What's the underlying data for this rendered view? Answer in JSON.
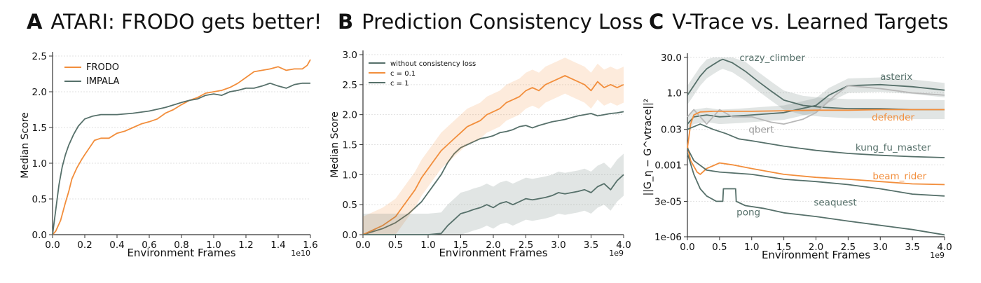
{
  "panels": [
    {
      "letter": "A",
      "title": "ATARI: FRODO gets better!"
    },
    {
      "letter": "B",
      "title": "Prediction Consistency Loss"
    },
    {
      "letter": "C",
      "title": "V-Trace vs. Learned Targets"
    }
  ],
  "chart_data": [
    {
      "type": "line",
      "title": "ATARI: FRODO gets better!",
      "xlabel": "Environment Frames",
      "ylabel": "Median Score",
      "x_scale_label": "1e10",
      "xlim": [
        0,
        1.6
      ],
      "ylim": [
        0,
        2.5
      ],
      "xticks": [
        0.0,
        0.2,
        0.4,
        0.6,
        0.8,
        1.0,
        1.2,
        1.4,
        1.6
      ],
      "xtick_labels": [
        "0.0",
        "0.2",
        "0.4",
        "0.6",
        "0.8",
        "1.0",
        "1.2",
        "1.4",
        "1.6"
      ],
      "yticks": [
        0.0,
        0.5,
        1.0,
        1.5,
        2.0,
        2.5
      ],
      "ytick_labels": [
        "0.0",
        "0.5",
        "1.0",
        "1.5",
        "2.0",
        "2.5"
      ],
      "grid": "horizontal",
      "legend": "top-left",
      "series": [
        {
          "name": "FRODO",
          "color": "#f28e3c",
          "x": [
            0.0,
            0.02,
            0.05,
            0.08,
            0.1,
            0.12,
            0.15,
            0.18,
            0.2,
            0.23,
            0.26,
            0.3,
            0.35,
            0.4,
            0.45,
            0.5,
            0.55,
            0.6,
            0.65,
            0.7,
            0.75,
            0.8,
            0.85,
            0.9,
            0.95,
            1.0,
            1.05,
            1.1,
            1.15,
            1.2,
            1.25,
            1.3,
            1.35,
            1.4,
            1.45,
            1.5,
            1.55,
            1.58,
            1.6
          ],
          "y": [
            0.0,
            0.05,
            0.2,
            0.45,
            0.6,
            0.78,
            0.93,
            1.05,
            1.12,
            1.22,
            1.32,
            1.35,
            1.35,
            1.42,
            1.45,
            1.5,
            1.55,
            1.58,
            1.62,
            1.7,
            1.75,
            1.82,
            1.88,
            1.92,
            1.98,
            2.0,
            2.02,
            2.06,
            2.12,
            2.2,
            2.28,
            2.3,
            2.32,
            2.35,
            2.3,
            2.32,
            2.32,
            2.37,
            2.45
          ]
        },
        {
          "name": "IMPALA",
          "color": "#56706a",
          "x": [
            0.0,
            0.02,
            0.04,
            0.06,
            0.08,
            0.1,
            0.13,
            0.16,
            0.2,
            0.25,
            0.3,
            0.4,
            0.5,
            0.6,
            0.7,
            0.8,
            0.85,
            0.9,
            0.95,
            1.0,
            1.05,
            1.1,
            1.15,
            1.2,
            1.25,
            1.3,
            1.35,
            1.4,
            1.45,
            1.5,
            1.55,
            1.6
          ],
          "y": [
            0.0,
            0.35,
            0.7,
            0.95,
            1.12,
            1.25,
            1.4,
            1.52,
            1.62,
            1.66,
            1.68,
            1.68,
            1.7,
            1.73,
            1.78,
            1.85,
            1.88,
            1.9,
            1.95,
            1.97,
            1.95,
            2.0,
            2.02,
            2.05,
            2.05,
            2.08,
            2.12,
            2.08,
            2.05,
            2.1,
            2.12,
            2.12
          ]
        }
      ]
    },
    {
      "type": "line",
      "title": "Prediction Consistency Loss",
      "xlabel": "Environment Frames",
      "ylabel": "Median Score",
      "x_scale_label": "1e9",
      "xlim": [
        0,
        4.0
      ],
      "ylim": [
        0,
        3.0
      ],
      "xticks": [
        0.0,
        0.5,
        1.0,
        1.5,
        2.0,
        2.5,
        3.0,
        3.5,
        4.0
      ],
      "xtick_labels": [
        "0.0",
        "0.5",
        "1.0",
        "1.5",
        "2.0",
        "2.5",
        "3.0",
        "3.5",
        "4.0"
      ],
      "yticks": [
        0.0,
        0.5,
        1.0,
        1.5,
        2.0,
        2.5,
        3.0
      ],
      "ytick_labels": [
        "0.0",
        "0.5",
        "1.0",
        "1.5",
        "2.0",
        "2.5",
        "3.0"
      ],
      "grid": "horizontal",
      "legend": "top-left",
      "series": [
        {
          "name": "without consistency loss",
          "color": "#56706a",
          "x": [
            0.0,
            0.3,
            0.5,
            0.7,
            0.9,
            1.0,
            1.1,
            1.2,
            1.3,
            1.4,
            1.5,
            1.6,
            1.7,
            1.8,
            1.9,
            2.0,
            2.1,
            2.2,
            2.3,
            2.4,
            2.5,
            2.6,
            2.7,
            2.8,
            2.9,
            3.0,
            3.1,
            3.2,
            3.3,
            3.4,
            3.5,
            3.6,
            3.7,
            3.8,
            3.9,
            4.0
          ],
          "y": [
            0.0,
            0.1,
            0.2,
            0.35,
            0.55,
            0.7,
            0.85,
            1.0,
            1.2,
            1.35,
            1.45,
            1.5,
            1.55,
            1.6,
            1.62,
            1.65,
            1.7,
            1.72,
            1.75,
            1.8,
            1.82,
            1.78,
            1.82,
            1.85,
            1.88,
            1.9,
            1.92,
            1.95,
            1.98,
            2.0,
            2.02,
            1.98,
            2.0,
            2.02,
            2.03,
            2.05
          ]
        },
        {
          "name": "c = 0.1",
          "color": "#f28e3c",
          "band": 0.3,
          "x": [
            0.0,
            0.3,
            0.5,
            0.6,
            0.7,
            0.8,
            0.9,
            1.0,
            1.1,
            1.2,
            1.3,
            1.4,
            1.5,
            1.6,
            1.7,
            1.8,
            1.9,
            2.0,
            2.1,
            2.2,
            2.3,
            2.4,
            2.5,
            2.6,
            2.7,
            2.8,
            2.9,
            3.0,
            3.1,
            3.2,
            3.3,
            3.4,
            3.5,
            3.6,
            3.7,
            3.8,
            3.9,
            4.0
          ],
          "y": [
            0.0,
            0.15,
            0.3,
            0.45,
            0.6,
            0.75,
            0.95,
            1.1,
            1.25,
            1.4,
            1.5,
            1.6,
            1.7,
            1.8,
            1.85,
            1.9,
            2.0,
            2.05,
            2.1,
            2.2,
            2.25,
            2.3,
            2.4,
            2.45,
            2.4,
            2.5,
            2.55,
            2.6,
            2.65,
            2.6,
            2.55,
            2.5,
            2.4,
            2.55,
            2.45,
            2.5,
            2.45,
            2.5
          ]
        },
        {
          "name": "c = 1",
          "color": "#56706a",
          "band": 0.35,
          "x": [
            0.0,
            0.6,
            1.0,
            1.2,
            1.3,
            1.4,
            1.5,
            1.6,
            1.7,
            1.8,
            1.9,
            2.0,
            2.1,
            2.2,
            2.3,
            2.4,
            2.5,
            2.6,
            2.7,
            2.8,
            2.9,
            3.0,
            3.1,
            3.2,
            3.3,
            3.4,
            3.5,
            3.6,
            3.7,
            3.8,
            3.9,
            4.0
          ],
          "y": [
            0.0,
            0.0,
            0.0,
            0.02,
            0.15,
            0.25,
            0.35,
            0.38,
            0.42,
            0.45,
            0.5,
            0.45,
            0.52,
            0.55,
            0.5,
            0.55,
            0.6,
            0.58,
            0.6,
            0.62,
            0.65,
            0.7,
            0.68,
            0.7,
            0.72,
            0.75,
            0.7,
            0.8,
            0.85,
            0.75,
            0.9,
            1.0
          ]
        }
      ]
    },
    {
      "type": "line",
      "title": "V-Trace vs. Learned Targets",
      "xlabel": "Environment Frames",
      "ylabel": "||G_η − G^vtrace||²",
      "x_scale_label": "1e9",
      "y_scale": "log",
      "xlim": [
        0,
        4.0
      ],
      "ylim": [
        1e-06,
        30.0
      ],
      "xticks": [
        0.0,
        0.5,
        1.0,
        1.5,
        2.0,
        2.5,
        3.0,
        3.5,
        4.0
      ],
      "xtick_labels": [
        "0.0",
        "0.5",
        "1.0",
        "1.5",
        "2.0",
        "2.5",
        "3.0",
        "3.5",
        "4.0"
      ],
      "yticks": [
        1e-06,
        3e-05,
        0.001,
        0.03,
        1.0,
        30.0
      ],
      "ytick_labels": [
        "1e-06",
        "3e-05",
        "0.001",
        "0.03",
        "1.0",
        "30.0"
      ],
      "grid": "horizontal",
      "legend": "none",
      "series": [
        {
          "name": "crazy_climber",
          "color": "#56706a",
          "band": 2.5,
          "x": [
            0.0,
            0.1,
            0.2,
            0.3,
            0.4,
            0.5,
            0.55,
            0.7,
            0.9,
            1.1,
            1.3,
            1.5,
            1.8,
            2.1,
            2.5,
            3.0,
            3.5,
            4.0
          ],
          "y": [
            0.8,
            2.0,
            5.0,
            10.0,
            15.0,
            22.0,
            25.0,
            18.0,
            8.0,
            3.0,
            1.2,
            0.5,
            0.3,
            0.25,
            0.22,
            0.22,
            0.2,
            0.2
          ]
        },
        {
          "name": "asterix",
          "color": "#56706a",
          "band": 2.0,
          "x": [
            0.0,
            0.1,
            0.3,
            0.5,
            0.8,
            1.0,
            1.5,
            2.0,
            2.2,
            2.5,
            3.0,
            3.5,
            4.0
          ],
          "y": [
            0.05,
            0.1,
            0.12,
            0.1,
            0.11,
            0.12,
            0.15,
            0.3,
            0.8,
            2.0,
            2.2,
            1.8,
            1.3
          ]
        },
        {
          "name": "qbert",
          "color": "#b8b8b8",
          "x": [
            0.0,
            0.1,
            0.3,
            0.5,
            0.7,
            1.0,
            1.3,
            1.5,
            1.8,
            2.0,
            2.3,
            2.5,
            3.0,
            3.5,
            4.0
          ],
          "y": [
            0.1,
            0.2,
            0.05,
            0.2,
            0.1,
            0.1,
            0.06,
            0.05,
            0.08,
            0.15,
            0.8,
            2.0,
            1.5,
            1.0,
            0.8
          ]
        },
        {
          "name": "defender",
          "color": "#f28e3c",
          "x": [
            0.0,
            0.05,
            0.1,
            0.2,
            0.4,
            0.6,
            1.0,
            1.5,
            2.0,
            2.5,
            3.0,
            3.5,
            4.0
          ],
          "y": [
            0.005,
            0.05,
            0.12,
            0.16,
            0.17,
            0.17,
            0.17,
            0.18,
            0.19,
            0.19,
            0.2,
            0.2,
            0.2
          ]
        },
        {
          "name": "kung_fu_master",
          "color": "#56706a",
          "x": [
            0.0,
            0.2,
            0.4,
            0.6,
            0.8,
            1.0,
            1.5,
            2.0,
            2.5,
            3.0,
            3.5,
            4.0
          ],
          "y": [
            0.03,
            0.05,
            0.03,
            0.02,
            0.012,
            0.01,
            0.006,
            0.004,
            0.003,
            0.0025,
            0.0022,
            0.002
          ]
        },
        {
          "name": "beam_rider",
          "color": "#f28e3c",
          "x": [
            0.0,
            0.05,
            0.15,
            0.2,
            0.3,
            0.5,
            0.7,
            1.0,
            1.5,
            2.0,
            2.5,
            3.0,
            3.5,
            4.0
          ],
          "y": [
            0.006,
            0.0015,
            0.0005,
            0.0004,
            0.0007,
            0.0012,
            0.001,
            0.0007,
            0.0004,
            0.0003,
            0.00025,
            0.0002,
            0.00016,
            0.00015
          ]
        },
        {
          "name": "seaquest",
          "color": "#56706a",
          "x": [
            0.0,
            0.1,
            0.3,
            0.5,
            1.0,
            1.5,
            2.0,
            2.5,
            3.0,
            3.5,
            4.0
          ],
          "y": [
            0.005,
            0.0015,
            0.0006,
            0.0005,
            0.0004,
            0.00025,
            0.0002,
            0.00015,
            0.0001,
            6e-05,
            5e-05
          ]
        },
        {
          "name": "pong",
          "color": "#56706a",
          "x": [
            0.0,
            0.1,
            0.2,
            0.3,
            0.45,
            0.55,
            0.56,
            0.6,
            0.7,
            0.75,
            0.76,
            0.9,
            1.2,
            1.5,
            2.0,
            2.5,
            3.0,
            3.5,
            4.0
          ],
          "y": [
            0.003,
            0.0004,
            0.0001,
            5e-05,
            3e-05,
            3e-05,
            0.0001,
            0.0001,
            0.0001,
            0.0001,
            3e-05,
            2e-05,
            1.5e-05,
            1e-05,
            7e-06,
            4.5e-06,
            3e-06,
            2e-06,
            1.2e-06
          ]
        }
      ]
    }
  ]
}
